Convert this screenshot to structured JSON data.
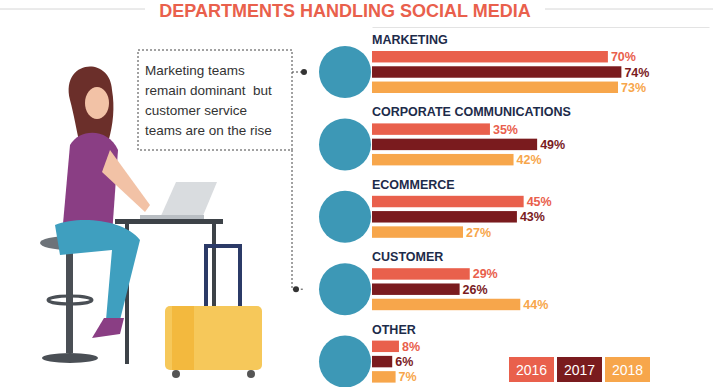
{
  "chart_data": {
    "type": "bar",
    "orientation": "horizontal",
    "title": "DEPARTMENTS HANDLING SOCIAL MEDIA",
    "annotation": [
      "Marketing teams",
      "remain dominant  but",
      "customer service",
      "teams are on the rise"
    ],
    "categories": [
      "MARKETING",
      "CORPORATE COMMUNICATIONS",
      "ECOMMERCE",
      "CUSTOMER",
      "OTHER"
    ],
    "series": [
      {
        "name": "2016",
        "color": "#e9604c",
        "values": [
          70,
          35,
          45,
          29,
          8
        ],
        "value_labels": [
          "70%",
          "35%",
          "45%",
          "29%",
          "8%"
        ]
      },
      {
        "name": "2017",
        "color": "#7a1b1e",
        "values": [
          74,
          49,
          43,
          26,
          6
        ],
        "value_labels": [
          "74%",
          "49%",
          "43%",
          "26%",
          "6%"
        ]
      },
      {
        "name": "2018",
        "color": "#f7a64b",
        "values": [
          73,
          42,
          27,
          44,
          7
        ],
        "value_labels": [
          "73%",
          "42%",
          "27%",
          "44%",
          "7%"
        ]
      }
    ],
    "xlim": [
      0,
      100
    ],
    "tick_labels": false,
    "data_labels": true,
    "legend": "bottom-right"
  }
}
